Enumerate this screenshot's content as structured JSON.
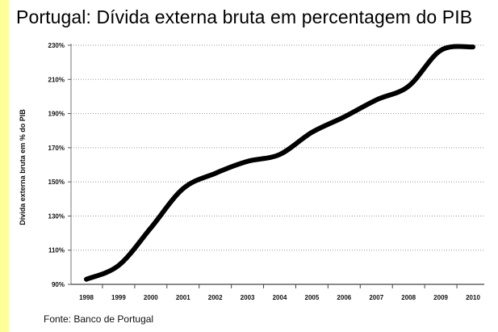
{
  "page": {
    "title": "Portugal: Dívida externa bruta em percentagem do PIB",
    "source": "Fonte: Banco de Portugal",
    "frame_accent_color": "#ffff99"
  },
  "chart_data": {
    "type": "line",
    "title": "Portugal: Dívida externa bruta em percentagem do PIB",
    "xlabel": "",
    "ylabel": "Dívida externa bruta em % do PIB",
    "categories": [
      "1998",
      "1999",
      "2000",
      "2001",
      "2002",
      "2003",
      "2004",
      "2005",
      "2006",
      "2007",
      "2008",
      "2009",
      "2010"
    ],
    "series": [
      {
        "values": [
          93,
          101,
          123,
          146,
          155,
          162,
          166,
          179,
          188,
          198,
          206,
          227,
          229
        ],
        "color": "#000000"
      }
    ],
    "y_ticks": [
      90,
      110,
      130,
      150,
      170,
      190,
      210,
      230
    ],
    "y_tick_labels": [
      "90%",
      "110%",
      "130%",
      "150%",
      "170%",
      "190%",
      "210%",
      "230%"
    ],
    "ylim": [
      90,
      230
    ],
    "grid": true,
    "grid_style": "dotted horizontal",
    "legend": "none"
  }
}
